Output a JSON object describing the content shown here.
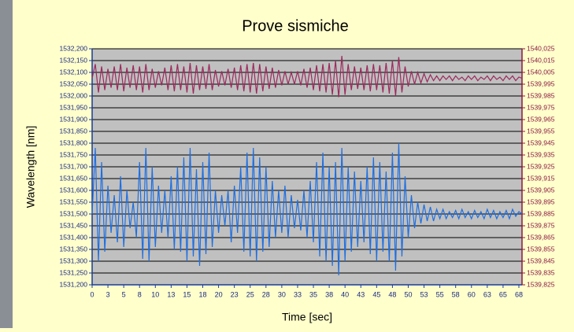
{
  "chart_data": {
    "type": "line",
    "title": "Prove sismiche",
    "x_label": "Time [sec]",
    "y_label": "Wavelength [nm]",
    "xlim": [
      0,
      68
    ],
    "xticks": [
      0,
      {
        "value": 2.5,
        "label": "3"
      },
      5,
      {
        "value": 7.5,
        "label": "8"
      },
      10,
      {
        "value": 12.5,
        "label": "13"
      },
      15,
      {
        "value": 17.5,
        "label": "18"
      },
      20,
      {
        "value": 22.5,
        "label": "23"
      },
      25,
      {
        "value": 27.5,
        "label": "28"
      },
      30,
      {
        "value": 32.5,
        "label": "33"
      },
      35,
      {
        "value": 37.5,
        "label": "38"
      },
      40,
      {
        "value": 42.5,
        "label": "43"
      },
      45,
      {
        "value": 47.5,
        "label": "48"
      },
      50,
      {
        "value": 52.5,
        "label": "53"
      },
      55,
      {
        "value": 57.5,
        "label": "58"
      },
      60,
      {
        "value": 62.5,
        "label": "63"
      },
      65,
      {
        "value": 67.5,
        "label": "68"
      }
    ],
    "ylim": [
      1531.2,
      1532.2
    ],
    "yticks": [
      {
        "value": 1531.2,
        "label": "1531,200"
      },
      {
        "value": 1531.25,
        "label": "1531,250"
      },
      {
        "value": 1531.3,
        "label": "1531,300"
      },
      {
        "value": 1531.35,
        "label": "1531,350"
      },
      {
        "value": 1531.4,
        "label": "1531,400"
      },
      {
        "value": 1531.45,
        "label": "1531,450"
      },
      {
        "value": 1531.5,
        "label": "1531,500"
      },
      {
        "value": 1531.55,
        "label": "1531,550"
      },
      {
        "value": 1531.6,
        "label": "1531,600"
      },
      {
        "value": 1531.65,
        "label": "1531,650"
      },
      {
        "value": 1531.7,
        "label": "1531,700"
      },
      {
        "value": 1531.75,
        "label": "1531,750"
      },
      {
        "value": 1531.8,
        "label": "1531,800"
      },
      {
        "value": 1531.85,
        "label": "1531,850"
      },
      {
        "value": 1531.9,
        "label": "1531,900"
      },
      {
        "value": 1531.95,
        "label": "1531,950"
      },
      {
        "value": 1532.0,
        "label": "1532,000"
      },
      {
        "value": 1532.05,
        "label": "1532,050"
      },
      {
        "value": 1532.1,
        "label": "1532,100"
      },
      {
        "value": 1532.15,
        "label": "1532,150"
      },
      {
        "value": 1532.2,
        "label": "1532,200"
      }
    ],
    "y2lim": [
      1539.825,
      1540.025
    ],
    "y2ticks": [
      {
        "value": 1539.825,
        "label": "1539,825"
      },
      {
        "value": 1539.835,
        "label": "1539,835"
      },
      {
        "value": 1539.845,
        "label": "1539,845"
      },
      {
        "value": 1539.855,
        "label": "1539,855"
      },
      {
        "value": 1539.865,
        "label": "1539,865"
      },
      {
        "value": 1539.875,
        "label": "1539,875"
      },
      {
        "value": 1539.885,
        "label": "1539,885"
      },
      {
        "value": 1539.895,
        "label": "1539,895"
      },
      {
        "value": 1539.905,
        "label": "1539,905"
      },
      {
        "value": 1539.915,
        "label": "1539,915"
      },
      {
        "value": 1539.925,
        "label": "1539,925"
      },
      {
        "value": 1539.935,
        "label": "1539,935"
      },
      {
        "value": 1539.945,
        "label": "1539,945"
      },
      {
        "value": 1539.955,
        "label": "1539,955"
      },
      {
        "value": 1539.965,
        "label": "1539,965"
      },
      {
        "value": 1539.975,
        "label": "1539,975"
      },
      {
        "value": 1539.985,
        "label": "1539,985"
      },
      {
        "value": 1539.995,
        "label": "1539,995"
      },
      {
        "value": 1540.005,
        "label": "1540,005"
      },
      {
        "value": 1540.015,
        "label": "1540,015"
      },
      {
        "value": 1540.025,
        "label": "1540,025"
      }
    ],
    "grid": true,
    "x": [
      0,
      0.5,
      1,
      1.5,
      2,
      2.5,
      3,
      3.5,
      4,
      4.5,
      5,
      5.5,
      6,
      6.5,
      7,
      7.5,
      8,
      8.5,
      9,
      9.5,
      10,
      10.5,
      11,
      11.5,
      12,
      12.5,
      13,
      13.5,
      14,
      14.5,
      15,
      15.5,
      16,
      16.5,
      17,
      17.5,
      18,
      18.5,
      19,
      19.5,
      20,
      20.5,
      21,
      21.5,
      22,
      22.5,
      23,
      23.5,
      24,
      24.5,
      25,
      25.5,
      26,
      26.5,
      27,
      27.5,
      28,
      28.5,
      29,
      29.5,
      30,
      30.5,
      31,
      31.5,
      32,
      32.5,
      33,
      33.5,
      34,
      34.5,
      35,
      35.5,
      36,
      36.5,
      37,
      37.5,
      38,
      38.5,
      39,
      39.5,
      40,
      40.5,
      41,
      41.5,
      42,
      42.5,
      43,
      43.5,
      44,
      44.5,
      45,
      45.5,
      46,
      46.5,
      47,
      47.5,
      48,
      48.5,
      49,
      49.5,
      50,
      50.5,
      51,
      51.5,
      52,
      52.5,
      53,
      53.5,
      54,
      54.5,
      55,
      55.5,
      56,
      56.5,
      57,
      57.5,
      58,
      58.5,
      59,
      59.5,
      60,
      60.5,
      61,
      61.5,
      62,
      62.5,
      63,
      63.5,
      64,
      64.5,
      65,
      65.5,
      66,
      66.5,
      67,
      67.5,
      68
    ],
    "series": [
      {
        "color": "#1f6fe0",
        "axis": "y",
        "values": [
          1531.5,
          1531.78,
          1531.3,
          1531.72,
          1531.34,
          1531.62,
          1531.42,
          1531.58,
          1531.38,
          1531.66,
          1531.36,
          1531.6,
          1531.44,
          1531.55,
          1531.4,
          1531.72,
          1531.31,
          1531.78,
          1531.3,
          1531.7,
          1531.36,
          1531.62,
          1531.42,
          1531.6,
          1531.4,
          1531.66,
          1531.35,
          1531.7,
          1531.34,
          1531.74,
          1531.3,
          1531.78,
          1531.32,
          1531.69,
          1531.28,
          1531.72,
          1531.33,
          1531.76,
          1531.36,
          1531.6,
          1531.42,
          1531.58,
          1531.45,
          1531.6,
          1531.38,
          1531.62,
          1531.42,
          1531.7,
          1531.34,
          1531.76,
          1531.32,
          1531.78,
          1531.3,
          1531.74,
          1531.34,
          1531.7,
          1531.36,
          1531.64,
          1531.4,
          1531.6,
          1531.42,
          1531.62,
          1531.4,
          1531.58,
          1531.44,
          1531.56,
          1531.43,
          1531.6,
          1531.4,
          1531.64,
          1531.38,
          1531.72,
          1531.32,
          1531.76,
          1531.3,
          1531.7,
          1531.28,
          1531.72,
          1531.24,
          1531.78,
          1531.3,
          1531.7,
          1531.34,
          1531.68,
          1531.36,
          1531.64,
          1531.38,
          1531.7,
          1531.33,
          1531.74,
          1531.3,
          1531.72,
          1531.34,
          1531.68,
          1531.3,
          1531.76,
          1531.26,
          1531.8,
          1531.32,
          1531.66,
          1531.4,
          1531.58,
          1531.44,
          1531.55,
          1531.46,
          1531.54,
          1531.47,
          1531.53,
          1531.47,
          1531.52,
          1531.48,
          1531.52,
          1531.48,
          1531.51,
          1531.485,
          1531.515,
          1531.48,
          1531.52,
          1531.485,
          1531.51,
          1531.48,
          1531.515,
          1531.485,
          1531.51,
          1531.48,
          1531.52,
          1531.485,
          1531.515,
          1531.48,
          1531.51,
          1531.485,
          1531.515,
          1531.48,
          1531.52,
          1531.49,
          1531.51,
          1531.5
        ]
      },
      {
        "color": "#9b2a5c",
        "axis": "y2",
        "values": [
          1540.0,
          1540.012,
          1539.988,
          1540.01,
          1539.99,
          1540.008,
          1539.992,
          1540.01,
          1539.99,
          1540.012,
          1539.989,
          1540.009,
          1539.992,
          1540.011,
          1539.99,
          1540.01,
          1539.988,
          1540.012,
          1539.99,
          1540.008,
          1539.992,
          1540.006,
          1539.994,
          1540.009,
          1539.99,
          1540.011,
          1539.989,
          1540.012,
          1539.99,
          1540.01,
          1539.988,
          1540.013,
          1539.987,
          1540.011,
          1539.99,
          1540.01,
          1539.991,
          1540.012,
          1539.99,
          1540.007,
          1539.993,
          1540.006,
          1539.994,
          1540.008,
          1539.992,
          1540.009,
          1539.99,
          1540.011,
          1539.989,
          1540.012,
          1539.988,
          1540.013,
          1539.987,
          1540.012,
          1539.989,
          1540.01,
          1539.991,
          1540.009,
          1539.992,
          1540.007,
          1539.994,
          1540.006,
          1539.995,
          1540.005,
          1539.995,
          1540.006,
          1539.994,
          1540.008,
          1539.992,
          1540.009,
          1539.99,
          1540.011,
          1539.989,
          1540.012,
          1539.988,
          1540.013,
          1539.986,
          1540.015,
          1539.984,
          1540.019,
          1539.986,
          1540.012,
          1539.99,
          1540.01,
          1539.991,
          1540.009,
          1539.99,
          1540.011,
          1539.989,
          1540.012,
          1539.99,
          1540.011,
          1539.988,
          1540.013,
          1539.987,
          1540.015,
          1539.985,
          1540.018,
          1539.988,
          1540.01,
          1539.993,
          1540.006,
          1539.995,
          1540.005,
          1539.996,
          1540.004,
          1539.997,
          1540.003,
          1539.998,
          1540.002,
          1539.998,
          1540.002,
          1539.999,
          1540.002,
          1539.998,
          1540.002,
          1539.999,
          1540.001,
          1539.998,
          1540.002,
          1539.999,
          1540.002,
          1539.998,
          1540.001,
          1539.999,
          1540.002,
          1539.998,
          1540.002,
          1539.999,
          1540.001,
          1539.998,
          1540.002,
          1539.999,
          1540.002,
          1539.998,
          1540.001,
          1540.0
        ]
      }
    ]
  }
}
